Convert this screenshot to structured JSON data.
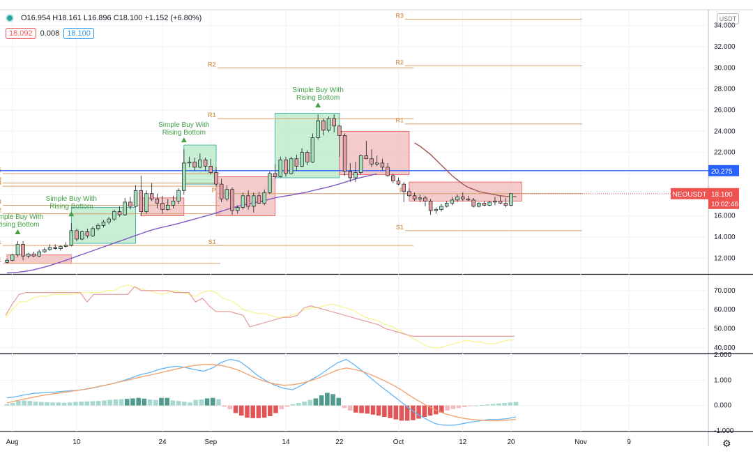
{
  "header": {
    "ohlc_text": "O16.954 H18.161 L16.896 C18.100 +1.152 (+6.80%)",
    "bid": "18.092",
    "spread": "0.008",
    "ask": "18.100",
    "unit": "USDT"
  },
  "colors": {
    "up": "#26a69a",
    "up_fill": "#a5dfb5",
    "down": "#ef5350",
    "down_fill": "#e4a0a0",
    "pivot": "#d9a069",
    "blue_line": "#2962ff",
    "ma": "#7e57c2",
    "cloud_up": "#b6e8c4",
    "cloud_down": "#efb9b9",
    "macd": "#64b5f6",
    "signal": "#f0a06a",
    "rsi_yellow": "#f7f48a",
    "rsi_red": "#e59a9a"
  },
  "chart_data": [
    {
      "type": "candlestick",
      "pane": "price",
      "symbol": "NEOUSDT",
      "ylim": [
        10.5,
        35.5
      ],
      "y_ticks": [
        "34.000",
        "32.000",
        "30.000",
        "28.000",
        "26.000",
        "24.000",
        "22.000",
        "20.000",
        "18.000",
        "16.000",
        "14.000",
        "12.000"
      ],
      "x_ticks": [
        "Aug",
        "10",
        "24",
        "Sep",
        "14",
        "22",
        "Oct",
        "12",
        "20",
        "Nov",
        "9"
      ],
      "last_price": "18.100",
      "countdown": "10:02:46",
      "symbol_label": "NEOUSDT",
      "horizontal_line": {
        "value": 20.275,
        "label": "20.275"
      },
      "candles": [
        [
          11.6,
          11.9,
          11.5,
          11.8
        ],
        [
          11.8,
          12.4,
          11.7,
          12.3
        ],
        [
          12.3,
          13.6,
          12.1,
          13.3
        ],
        [
          13.3,
          13.6,
          11.8,
          12.2
        ],
        [
          12.2,
          12.5,
          12.0,
          12.4
        ],
        [
          12.4,
          12.6,
          12.1,
          12.2
        ],
        [
          12.2,
          12.8,
          12.1,
          12.6
        ],
        [
          12.6,
          13.0,
          12.5,
          12.8
        ],
        [
          12.8,
          13.3,
          12.7,
          13.0
        ],
        [
          13.0,
          13.3,
          12.8,
          12.9
        ],
        [
          12.9,
          13.2,
          12.7,
          13.1
        ],
        [
          13.1,
          13.5,
          13.0,
          13.2
        ],
        [
          13.2,
          15.3,
          13.1,
          14.6
        ],
        [
          14.6,
          14.8,
          13.6,
          13.8
        ],
        [
          13.8,
          14.6,
          13.7,
          14.5
        ],
        [
          14.5,
          14.8,
          13.9,
          14.1
        ],
        [
          14.1,
          15.0,
          14.0,
          14.8
        ],
        [
          14.8,
          15.3,
          14.6,
          15.1
        ],
        [
          15.1,
          15.6,
          14.9,
          15.4
        ],
        [
          15.4,
          15.9,
          15.2,
          15.7
        ],
        [
          15.7,
          16.6,
          15.5,
          16.4
        ],
        [
          16.4,
          16.9,
          15.9,
          16.1
        ],
        [
          16.1,
          17.7,
          16.0,
          17.3
        ],
        [
          17.3,
          17.8,
          16.6,
          16.9
        ],
        [
          16.9,
          18.9,
          16.8,
          18.4
        ],
        [
          18.4,
          19.8,
          16.0,
          16.4
        ],
        [
          16.4,
          18.4,
          16.2,
          18.1
        ],
        [
          18.1,
          19.1,
          17.4,
          17.6
        ],
        [
          17.6,
          18.1,
          16.7,
          17.2
        ],
        [
          17.2,
          17.9,
          16.2,
          16.6
        ],
        [
          16.6,
          17.6,
          16.5,
          17.0
        ],
        [
          17.0,
          17.9,
          16.7,
          17.4
        ],
        [
          17.4,
          18.6,
          17.1,
          18.4
        ],
        [
          18.4,
          22.3,
          18.0,
          21.0
        ],
        [
          21.0,
          21.6,
          20.6,
          21.1
        ],
        [
          21.1,
          21.5,
          20.3,
          20.6
        ],
        [
          20.6,
          21.9,
          20.5,
          21.3
        ],
        [
          21.3,
          21.5,
          20.3,
          20.7
        ],
        [
          20.7,
          21.4,
          19.9,
          20.1
        ],
        [
          20.1,
          20.6,
          18.8,
          19.0
        ],
        [
          19.0,
          19.5,
          17.3,
          17.6
        ],
        [
          17.6,
          18.9,
          17.4,
          18.5
        ],
        [
          18.5,
          18.7,
          16.1,
          16.5
        ],
        [
          16.5,
          17.0,
          16.2,
          16.8
        ],
        [
          16.8,
          18.2,
          16.6,
          17.9
        ],
        [
          17.9,
          18.4,
          16.6,
          16.9
        ],
        [
          16.9,
          18.2,
          16.3,
          17.9
        ],
        [
          17.9,
          18.3,
          17.1,
          17.2
        ],
        [
          17.2,
          18.5,
          17.0,
          18.2
        ],
        [
          18.2,
          20.2,
          18.1,
          20.0
        ],
        [
          20.0,
          20.9,
          19.5,
          19.7
        ],
        [
          19.7,
          21.6,
          19.6,
          21.3
        ],
        [
          21.3,
          21.6,
          19.7,
          20.0
        ],
        [
          20.0,
          21.6,
          19.9,
          21.4
        ],
        [
          21.4,
          21.8,
          20.3,
          20.7
        ],
        [
          20.7,
          22.4,
          20.6,
          22.0
        ],
        [
          22.0,
          22.2,
          20.8,
          21.1
        ],
        [
          21.1,
          23.8,
          21.0,
          23.4
        ],
        [
          23.4,
          25.6,
          23.2,
          25.0
        ],
        [
          25.0,
          25.2,
          23.6,
          24.1
        ],
        [
          24.1,
          25.4,
          23.9,
          25.2
        ],
        [
          25.2,
          25.6,
          23.9,
          24.5
        ],
        [
          24.5,
          24.6,
          21.6,
          23.6
        ],
        [
          23.6,
          23.8,
          19.8,
          20.2
        ],
        [
          20.2,
          21.0,
          19.2,
          19.6
        ],
        [
          19.6,
          21.1,
          19.2,
          20.1
        ],
        [
          20.1,
          21.8,
          19.9,
          21.7
        ],
        [
          21.7,
          23.1,
          21.4,
          21.4
        ],
        [
          21.4,
          22.3,
          20.6,
          20.9
        ],
        [
          20.9,
          21.7,
          20.7,
          21.0
        ],
        [
          21.0,
          21.4,
          20.3,
          20.6
        ],
        [
          20.6,
          21.0,
          19.7,
          19.8
        ],
        [
          19.8,
          20.0,
          19.1,
          19.3
        ],
        [
          19.3,
          19.6,
          18.9,
          19.0
        ],
        [
          19.0,
          19.2,
          17.3,
          18.3
        ],
        [
          18.3,
          18.6,
          17.8,
          17.9
        ],
        [
          17.9,
          18.2,
          17.4,
          17.6
        ],
        [
          17.6,
          18.0,
          17.3,
          17.7
        ],
        [
          17.7,
          17.9,
          16.9,
          17.4
        ],
        [
          17.4,
          17.6,
          16.1,
          16.5
        ],
        [
          16.5,
          16.8,
          16.2,
          16.6
        ],
        [
          16.6,
          17.1,
          16.4,
          16.9
        ],
        [
          16.9,
          17.4,
          16.8,
          17.2
        ],
        [
          17.2,
          17.8,
          17.0,
          17.5
        ],
        [
          17.5,
          18.0,
          17.3,
          17.8
        ],
        [
          17.8,
          18.2,
          17.4,
          17.6
        ],
        [
          17.6,
          17.9,
          17.4,
          17.5
        ],
        [
          17.5,
          17.7,
          16.8,
          16.9
        ],
        [
          16.9,
          17.3,
          16.8,
          17.2
        ],
        [
          17.2,
          17.4,
          16.9,
          17.0
        ],
        [
          17.0,
          17.4,
          16.9,
          17.3
        ],
        [
          17.3,
          17.8,
          17.0,
          17.4
        ],
        [
          17.4,
          17.9,
          17.1,
          17.2
        ],
        [
          17.2,
          17.7,
          16.8,
          17.0
        ],
        [
          17.0,
          18.16,
          16.9,
          18.1
        ]
      ],
      "series": [
        {
          "name": "",
          "values": [
            10.6,
            10.62,
            10.66,
            10.72,
            10.8,
            10.9,
            11.02,
            11.15,
            11.3,
            11.46,
            11.62,
            11.8,
            11.98,
            12.16,
            12.34,
            12.52,
            12.7,
            12.88,
            13.06,
            13.24,
            13.42,
            13.6,
            13.78,
            13.96,
            14.14,
            14.32,
            14.5,
            14.66,
            14.8,
            14.92,
            15.04,
            15.16,
            15.28,
            15.42,
            15.56,
            15.7,
            15.84,
            15.98,
            16.12,
            16.28,
            16.44,
            16.6,
            16.76,
            16.9,
            17.02,
            17.12,
            17.22,
            17.32,
            17.44,
            17.58,
            17.7,
            17.8,
            17.88,
            17.96,
            18.06,
            18.16,
            18.26,
            18.38,
            18.5,
            18.62,
            18.74,
            18.88,
            19.02,
            19.18,
            19.34,
            19.5,
            19.62,
            19.74,
            19.86,
            19.96
          ]
        },
        {
          "name": "",
          "values": [
            22.9,
            22.6,
            22.2,
            21.8,
            21.3,
            20.8,
            20.3,
            19.8,
            19.4,
            19.0,
            18.7,
            18.5,
            18.3,
            18.2,
            18.1,
            18.0,
            17.9,
            17.85,
            17.82,
            17.82
          ]
        }
      ],
      "pivot_groups": [
        {
          "labels": [
            "R1",
            "R2",
            "R3",
            "R4",
            "R5",
            "P",
            "S1"
          ],
          "values": [
            13.2,
            16.2,
            17.0,
            18.8,
            20.0,
            19.1,
            11.5
          ]
        },
        {
          "labels": [
            "R1",
            "R2",
            "P",
            "S1"
          ],
          "values": [
            25.2,
            30.0,
            18.1,
            13.2
          ]
        },
        {
          "labels": [
            "R1",
            "R2",
            "R3",
            "P",
            "S1"
          ],
          "values": [
            24.7,
            30.2,
            34.6,
            18.1,
            14.6
          ]
        }
      ],
      "annotations": [
        {
          "label": [
            "Simple Buy With",
            "Rising Bottom"
          ],
          "candle": 2
        },
        {
          "label": [
            "Simple Buy With",
            "Rising Bottom"
          ],
          "candle": 12
        },
        {
          "label": [
            "Simple Buy With",
            "Rising Bottom"
          ],
          "candle": 33
        },
        {
          "label": [
            "Simple Buy With",
            "Rising Bottom"
          ],
          "candle": 58
        }
      ]
    },
    {
      "type": "line",
      "pane": "oscillator",
      "ylim": [
        37,
        78
      ],
      "y_ticks": [
        "70.000",
        "60.000",
        "50.000",
        "40.000"
      ],
      "series": [
        {
          "name": "",
          "values": [
            56,
            60,
            64,
            64,
            66,
            67,
            67,
            68,
            68,
            68,
            68,
            69,
            69,
            69,
            69,
            70,
            70,
            72,
            73,
            72,
            71,
            70,
            69,
            68,
            69,
            70,
            69,
            68,
            67,
            69,
            70,
            69,
            66,
            65,
            63,
            60,
            59,
            58,
            58,
            57,
            56,
            56,
            57,
            58,
            60,
            61,
            61,
            62,
            63,
            62,
            61,
            60,
            58,
            56,
            55,
            54,
            52,
            51,
            49,
            47,
            45,
            43,
            41,
            40,
            40,
            41,
            42,
            43,
            44,
            43,
            43,
            42,
            42,
            43,
            44,
            44
          ]
        },
        {
          "name": "",
          "values": [
            57,
            63,
            68,
            69,
            69,
            69,
            69,
            69,
            69,
            69,
            69,
            69,
            64,
            68,
            68,
            68,
            68,
            68,
            68,
            72,
            70,
            70,
            70,
            70,
            70,
            69,
            69,
            69,
            64,
            66,
            62,
            59,
            59,
            59,
            58,
            57,
            51,
            52,
            53,
            54,
            55,
            56,
            56,
            57,
            61,
            62,
            61,
            60,
            59,
            58,
            57,
            56,
            55,
            54,
            53,
            52,
            50,
            49,
            48,
            47,
            46,
            46,
            46,
            46,
            46,
            46,
            46,
            46,
            46,
            46,
            46,
            46,
            46,
            46,
            46,
            46
          ]
        }
      ]
    },
    {
      "type": "bar",
      "pane": "macd",
      "ylim": [
        -1.0,
        2.0
      ],
      "y_ticks": [
        "2.000",
        "1.000",
        "0.000",
        "-1.000"
      ],
      "histogram": [
        0.05,
        0.1,
        0.18,
        0.2,
        0.18,
        0.15,
        0.14,
        0.13,
        0.12,
        0.12,
        0.11,
        0.12,
        0.14,
        0.15,
        0.16,
        0.17,
        0.18,
        0.2,
        0.22,
        0.24,
        0.25,
        0.26,
        0.28,
        0.3,
        0.27,
        0.24,
        0.22,
        0.3,
        0.3,
        0.2,
        0.18,
        0.15,
        0.12,
        0.22,
        0.24,
        0.28,
        0.3,
        0.25,
        -0.05,
        -0.15,
        -0.3,
        -0.4,
        -0.48,
        -0.5,
        -0.5,
        -0.48,
        -0.42,
        -0.3,
        -0.15,
        -0.05,
        0.05,
        0.1,
        0.15,
        0.22,
        0.28,
        0.4,
        0.5,
        0.45,
        0.3,
        -0.1,
        -0.2,
        -0.28,
        -0.3,
        -0.32,
        -0.36,
        -0.4,
        -0.45,
        -0.5,
        -0.55,
        -0.6,
        -0.6,
        -0.58,
        -0.52,
        -0.45,
        -0.4,
        -0.35,
        -0.28,
        -0.2,
        -0.14,
        -0.1,
        -0.06,
        -0.03,
        0.0,
        0.02,
        0.04,
        0.06,
        0.08,
        0.1,
        0.12,
        0.14
      ],
      "series": [
        {
          "name": "",
          "values": [
            0.3,
            0.35,
            0.42,
            0.48,
            0.5,
            0.52,
            0.55,
            0.58,
            0.6,
            0.65,
            0.72,
            0.8,
            0.88,
            0.98,
            1.1,
            1.22,
            1.3,
            1.42,
            1.5,
            1.55,
            1.5,
            1.42,
            1.35,
            1.48,
            1.7,
            1.82,
            1.75,
            1.5,
            1.2,
            0.98,
            0.8,
            0.68,
            0.62,
            0.8,
            1.0,
            1.2,
            1.45,
            1.68,
            1.82,
            1.58,
            1.3,
            1.0,
            0.72,
            0.45,
            0.18,
            -0.1,
            -0.35,
            -0.55,
            -0.72,
            -0.78,
            -0.78,
            -0.72,
            -0.65,
            -0.6,
            -0.55,
            -0.55,
            -0.52,
            -0.45
          ]
        },
        {
          "name": "",
          "values": [
            0.1,
            0.18,
            0.26,
            0.33,
            0.4,
            0.45,
            0.5,
            0.55,
            0.6,
            0.66,
            0.73,
            0.8,
            0.88,
            0.96,
            1.04,
            1.13,
            1.2,
            1.28,
            1.36,
            1.44,
            1.52,
            1.58,
            1.62,
            1.62,
            1.58,
            1.5,
            1.38,
            1.22,
            1.06,
            0.94,
            0.85,
            0.8,
            0.82,
            0.88,
            0.98,
            1.1,
            1.25,
            1.4,
            1.48,
            1.42,
            1.32,
            1.18,
            1.02,
            0.85,
            0.65,
            0.42,
            0.2,
            0.0,
            -0.18,
            -0.32,
            -0.42,
            -0.5,
            -0.55,
            -0.58,
            -0.6,
            -0.6,
            -0.58,
            -0.55
          ]
        }
      ]
    }
  ]
}
